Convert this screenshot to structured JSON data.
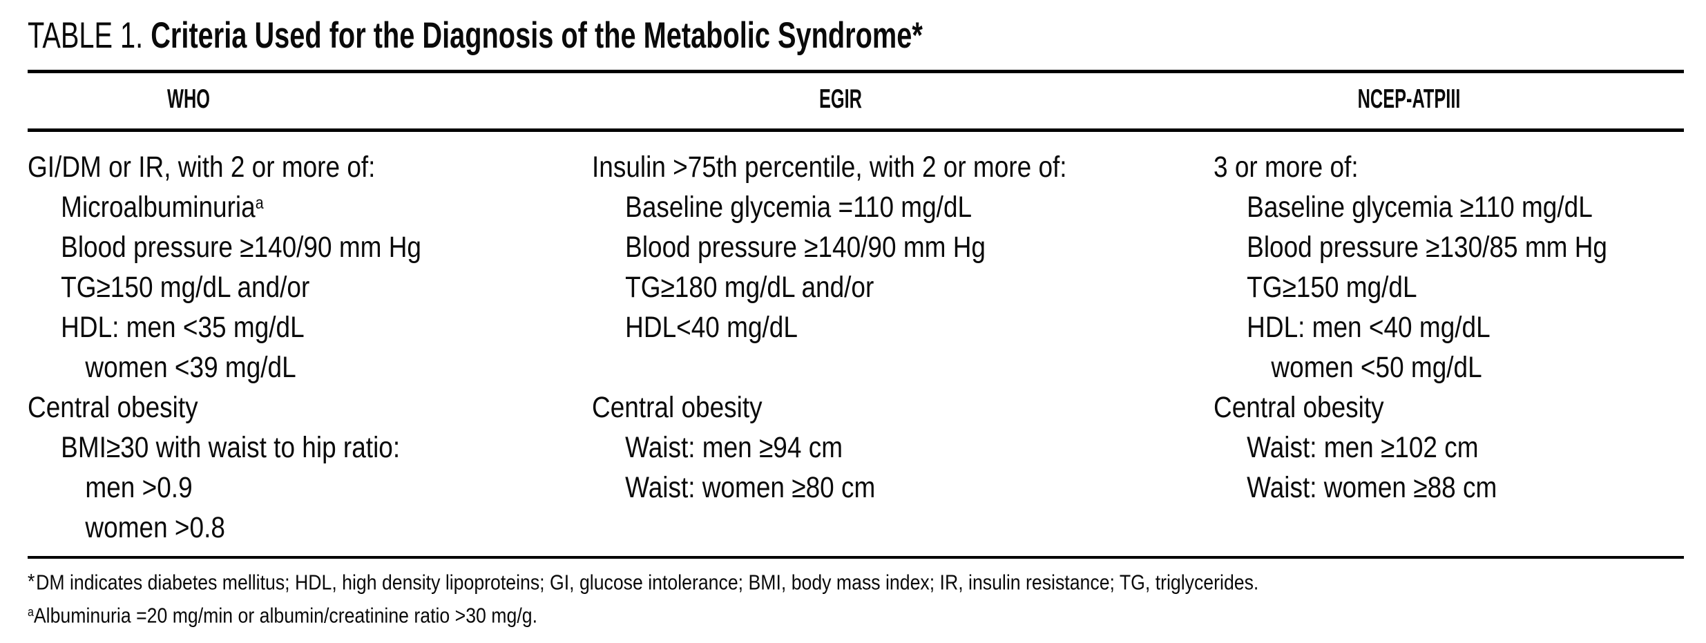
{
  "title": {
    "prefix": "TABLE 1. ",
    "text": "Criteria Used for the Diagnosis of the Metabolic Syndrome*"
  },
  "table": {
    "columns": [
      {
        "header": "WHO",
        "rows": [
          {
            "text": "GI/DM or IR, with 2 or more of:"
          },
          {
            "text": "Microalbuminuria",
            "sup": "a"
          },
          {
            "text": "Blood pressure ≥140/90 mm Hg"
          },
          {
            "text": "TG≥150 mg/dL and/or"
          },
          {
            "text": "HDL: men <35 mg/dL"
          },
          {
            "text": "women <39 mg/dL"
          },
          {
            "text": "Central obesity"
          },
          {
            "text": "BMI≥30 with waist to hip ratio:"
          },
          {
            "text": "men >0.9"
          },
          {
            "text": "women >0.8"
          }
        ]
      },
      {
        "header": "EGIR",
        "rows": [
          {
            "text": "Insulin >75th percentile, with 2 or more of:"
          },
          {
            "text": "Baseline glycemia =110 mg/dL"
          },
          {
            "text": "Blood pressure ≥140/90 mm Hg"
          },
          {
            "text": "TG≥180 mg/dL and/or"
          },
          {
            "text": "HDL<40 mg/dL"
          },
          {
            "text": ""
          },
          {
            "text": "Central obesity"
          },
          {
            "text": "Waist: men ≥94 cm"
          },
          {
            "text": "Waist: women ≥80 cm"
          },
          {
            "text": ""
          }
        ]
      },
      {
        "header": "NCEP-ATPIII",
        "rows": [
          {
            "text": "3 or more of:"
          },
          {
            "text": "Baseline glycemia ≥110 mg/dL"
          },
          {
            "text": "Blood pressure ≥130/85 mm Hg"
          },
          {
            "text": "TG≥150 mg/dL"
          },
          {
            "text": "HDL: men <40 mg/dL"
          },
          {
            "text": "women <50 mg/dL"
          },
          {
            "text": "Central obesity"
          },
          {
            "text": "Waist: men ≥102 cm"
          },
          {
            "text": "Waist: women ≥88 cm"
          },
          {
            "text": ""
          }
        ]
      }
    ]
  },
  "footnotes": [
    {
      "marker": "*",
      "text": "DM indicates diabetes mellitus; HDL, high density lipoproteins; GI, glucose intolerance; BMI, body mass index; IR, insulin resistance; TG, triglycerides."
    },
    {
      "marker": "a",
      "text": "Albuminuria =20 mg/min or albumin/creatinine ratio >30 mg/g."
    }
  ],
  "colors": {
    "text": "#0a0a0a",
    "background": "#ffffff",
    "rule": "#000000"
  }
}
